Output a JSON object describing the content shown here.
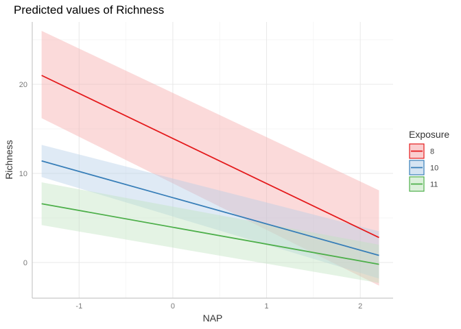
{
  "chart_data": {
    "type": "line",
    "title": "Predicted values of Richness",
    "xlabel": "NAP",
    "ylabel": "Richness",
    "xlim": [
      -1.5,
      2.35
    ],
    "ylim": [
      -4,
      27
    ],
    "x_ticks": [
      -1,
      0,
      1,
      2
    ],
    "y_ticks": [
      0,
      10,
      20
    ],
    "grid": true,
    "legend": {
      "title": "Exposure",
      "placement": "right"
    },
    "series": [
      {
        "name": "8",
        "color": "#e41a1c",
        "fill": "#f6a6a8",
        "x": [
          -1.4,
          2.2
        ],
        "y": [
          21.0,
          2.8
        ],
        "lower": [
          16.2,
          -2.6
        ],
        "upper": [
          26.0,
          8.1
        ]
      },
      {
        "name": "10",
        "color": "#377eb8",
        "fill": "#b3cde8",
        "x": [
          -1.4,
          2.2
        ],
        "y": [
          11.4,
          0.8
        ],
        "lower": [
          9.6,
          -1.8
        ],
        "upper": [
          13.2,
          3.5
        ]
      },
      {
        "name": "11",
        "color": "#4daf4a",
        "fill": "#bfe3be",
        "x": [
          -1.4,
          2.2
        ],
        "y": [
          6.6,
          -0.2
        ],
        "lower": [
          4.2,
          -2.3
        ],
        "upper": [
          9.0,
          2.0
        ]
      }
    ]
  }
}
